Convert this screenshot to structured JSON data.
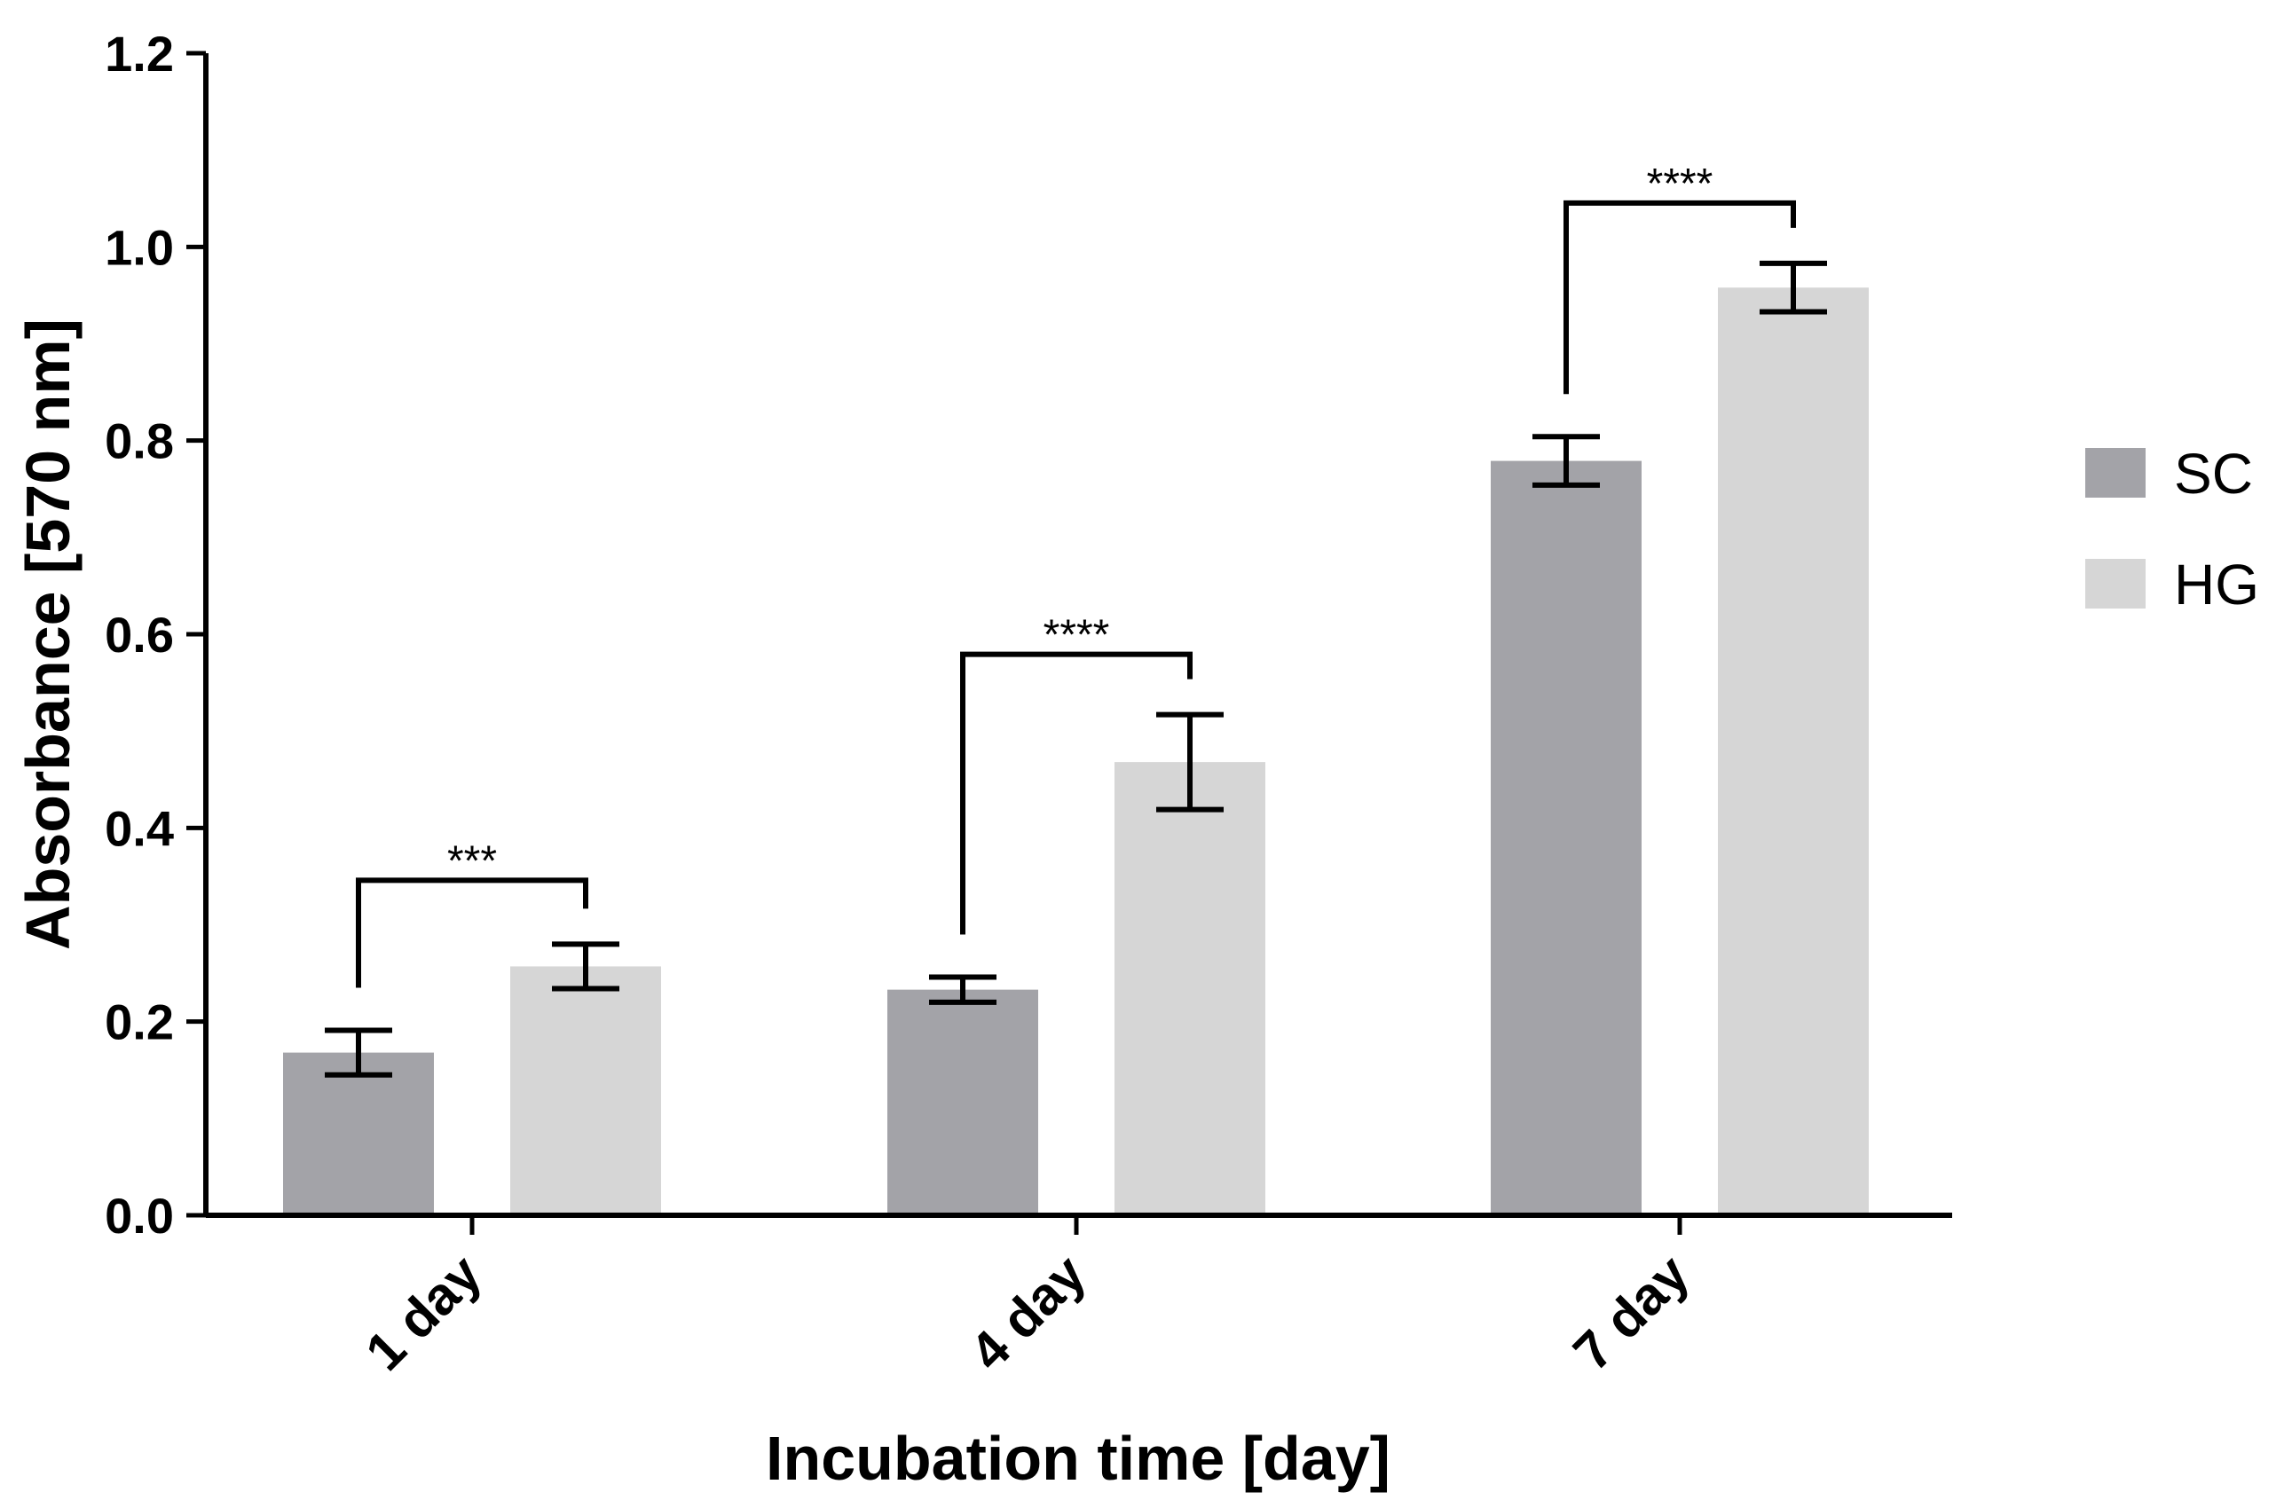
{
  "chart_data": {
    "type": "bar",
    "title": "",
    "xlabel": "Incubation time [day]",
    "ylabel": "Absorbance [570 nm]",
    "ylim": [
      0,
      1.2
    ],
    "yticks": [
      "0.0",
      "0.2",
      "0.4",
      "0.6",
      "0.8",
      "1.0",
      "1.2"
    ],
    "categories": [
      "1 day",
      "4 day",
      "7 day"
    ],
    "series": [
      {
        "name": "SC",
        "color": "#a3a3a8",
        "values": [
          0.168,
          0.233,
          0.779
        ],
        "errors": [
          0.023,
          0.013,
          0.025
        ]
      },
      {
        "name": "HG",
        "color": "#d6d6d6",
        "values": [
          0.257,
          0.468,
          0.958
        ],
        "errors": [
          0.023,
          0.049,
          0.025
        ]
      }
    ],
    "significance": [
      "***",
      "****",
      "****"
    ],
    "legend_position": "right"
  }
}
